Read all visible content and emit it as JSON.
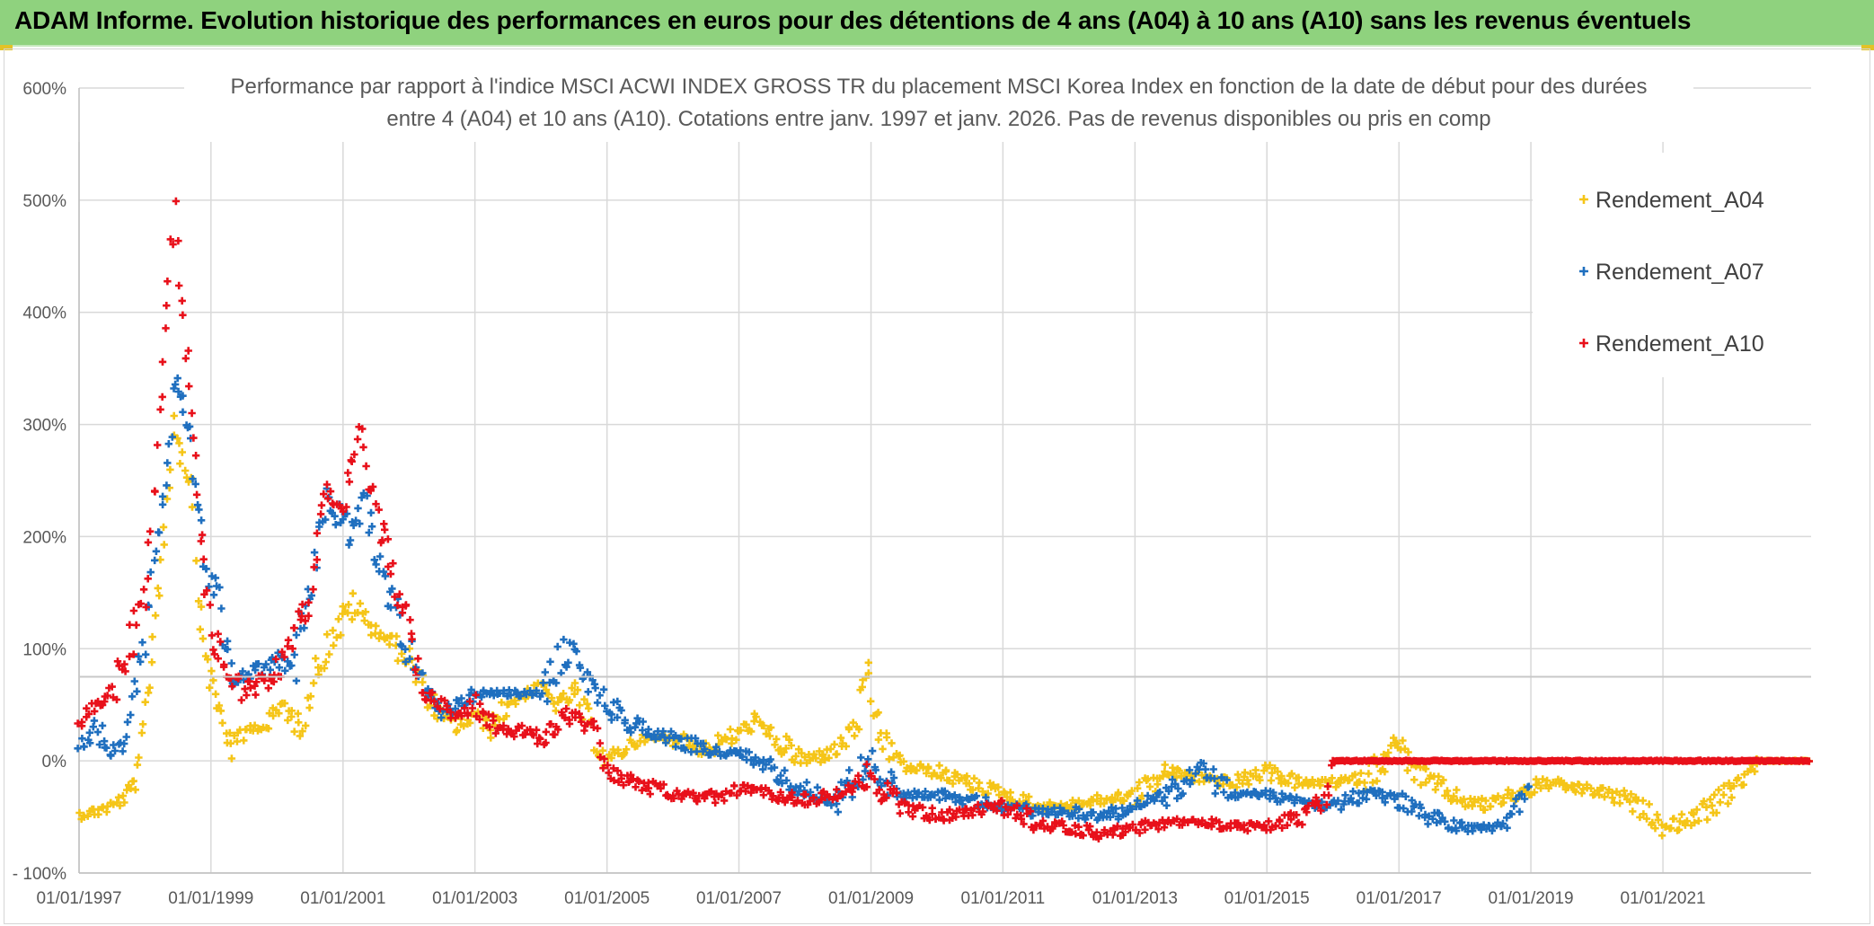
{
  "header": {
    "title": "ADAM Informe. Evolution historique des performances en euros pour des détentions de 4 ans (A04) à 10 ans (A10) sans les revenus éventuels"
  },
  "colors": {
    "banner": "#8fd27e",
    "A04": "#f5c518",
    "A07": "#1f6fbf",
    "A10": "#e8101a",
    "grid": "#d9d9d9",
    "text": "#595959"
  },
  "chart_data": {
    "type": "scatter",
    "title_lines": [
      "Performance  par rapport à l'indice MSCI ACWI INDEX GROSS TR  du placement MSCI Korea Index en fonction de la date de début pour des durées",
      "entre 4 (A04) et 10 ans (A10). Cotations entre janv. 1997 et janv. 2026. Pas de revenus disponibles ou pris en comp"
    ],
    "x_ticks": [
      "01/01/1997",
      "01/01/1999",
      "01/01/2001",
      "01/01/2003",
      "01/01/2005",
      "01/01/2007",
      "01/01/2009",
      "01/01/2011",
      "01/01/2013",
      "01/01/2015",
      "01/01/2017",
      "01/01/2019",
      "01/01/2021"
    ],
    "y_ticks": [
      "600%",
      "500%",
      "400%",
      "300%",
      "200%",
      "100%",
      "0%",
      "- 100%"
    ],
    "xlim": [
      "1997-01-01",
      "2023-04-01"
    ],
    "ylim": [
      -100,
      600
    ],
    "legend_position": "top-right",
    "grid": true,
    "series": [
      {
        "name": "Rendement_A04",
        "points": [
          [
            "1997-01-01",
            -48
          ],
          [
            "1997-04-01",
            -45
          ],
          [
            "1997-07-01",
            -40
          ],
          [
            "1997-10-01",
            -30
          ],
          [
            "1997-12-01",
            -10
          ],
          [
            "1998-01-15",
            60
          ],
          [
            "1998-03-01",
            130
          ],
          [
            "1998-05-01",
            230
          ],
          [
            "1998-06-15",
            310
          ],
          [
            "1998-08-01",
            270
          ],
          [
            "1998-09-15",
            250
          ],
          [
            "1998-11-01",
            130
          ],
          [
            "1999-01-01",
            70
          ],
          [
            "1999-03-01",
            40
          ],
          [
            "1999-05-01",
            10
          ],
          [
            "1999-08-01",
            30
          ],
          [
            "1999-11-01",
            30
          ],
          [
            "2000-02-01",
            50
          ],
          [
            "2000-05-01",
            30
          ],
          [
            "2000-08-01",
            80
          ],
          [
            "2000-11-01",
            110
          ],
          [
            "2001-03-01",
            140
          ],
          [
            "2001-06-01",
            120
          ],
          [
            "2001-09-01",
            110
          ],
          [
            "2002-01-01",
            90
          ],
          [
            "2002-04-01",
            60
          ],
          [
            "2002-07-01",
            40
          ],
          [
            "2002-10-01",
            30
          ],
          [
            "2003-01-01",
            40
          ],
          [
            "2003-04-01",
            30
          ],
          [
            "2003-07-01",
            50
          ],
          [
            "2003-10-01",
            60
          ],
          [
            "2004-01-01",
            65
          ],
          [
            "2004-04-01",
            50
          ],
          [
            "2004-07-01",
            60
          ],
          [
            "2004-10-01",
            30
          ],
          [
            "2005-01-01",
            0
          ],
          [
            "2005-04-01",
            10
          ],
          [
            "2005-07-01",
            20
          ],
          [
            "2006-01-01",
            20
          ],
          [
            "2006-07-01",
            10
          ],
          [
            "2007-01-01",
            25
          ],
          [
            "2007-04-01",
            35
          ],
          [
            "2007-07-01",
            20
          ],
          [
            "2008-01-01",
            0
          ],
          [
            "2008-07-01",
            10
          ],
          [
            "2008-10-01",
            30
          ],
          [
            "2008-12-15",
            70
          ],
          [
            "2009-03-01",
            20
          ],
          [
            "2009-07-01",
            -5
          ],
          [
            "2010-01-01",
            -10
          ],
          [
            "2010-07-01",
            -20
          ],
          [
            "2011-01-01",
            -30
          ],
          [
            "2011-07-01",
            -40
          ],
          [
            "2012-01-01",
            -40
          ],
          [
            "2012-07-01",
            -35
          ],
          [
            "2013-01-01",
            -30
          ],
          [
            "2013-07-01",
            -10
          ],
          [
            "2014-01-01",
            -15
          ],
          [
            "2014-07-01",
            -20
          ],
          [
            "2015-01-01",
            -10
          ],
          [
            "2015-07-01",
            -20
          ],
          [
            "2016-01-01",
            -20
          ],
          [
            "2016-07-01",
            -15
          ],
          [
            "2017-01-01",
            15
          ],
          [
            "2017-04-01",
            -10
          ],
          [
            "2017-10-01",
            -30
          ],
          [
            "2018-04-01",
            -40
          ],
          [
            "2018-10-01",
            -30
          ],
          [
            "2019-04-01",
            -20
          ],
          [
            "2019-10-01",
            -25
          ],
          [
            "2020-04-01",
            -30
          ],
          [
            "2020-10-01",
            -45
          ],
          [
            "2021-01-01",
            -60
          ],
          [
            "2021-07-01",
            -50
          ],
          [
            "2022-01-01",
            -30
          ],
          [
            "2022-04-01",
            -10
          ],
          [
            "2022-07-01",
            0
          ],
          [
            "2023-04-01",
            0
          ]
        ]
      },
      {
        "name": "Rendement_A07",
        "points": [
          [
            "1997-01-01",
            10
          ],
          [
            "1997-04-01",
            30
          ],
          [
            "1997-07-01",
            5
          ],
          [
            "1997-10-01",
            20
          ],
          [
            "1998-01-01",
            110
          ],
          [
            "1998-03-01",
            200
          ],
          [
            "1998-04-15",
            230
          ],
          [
            "1998-06-15",
            340
          ],
          [
            "1998-08-15",
            310
          ],
          [
            "1998-10-15",
            240
          ],
          [
            "1998-12-01",
            170
          ],
          [
            "1999-02-01",
            150
          ],
          [
            "1999-05-01",
            70
          ],
          [
            "1999-09-01",
            80
          ],
          [
            "2000-01-01",
            90
          ],
          [
            "2000-04-01",
            80
          ],
          [
            "2000-07-01",
            150
          ],
          [
            "2000-10-01",
            240
          ],
          [
            "2001-02-01",
            200
          ],
          [
            "2001-05-01",
            230
          ],
          [
            "2001-08-01",
            170
          ],
          [
            "2002-01-01",
            100
          ],
          [
            "2002-04-01",
            60
          ],
          [
            "2002-07-01",
            40
          ],
          [
            "2002-10-01",
            50
          ],
          [
            "2003-01-01",
            60
          ],
          [
            "2003-06-01",
            60
          ],
          [
            "2004-01-01",
            60
          ],
          [
            "2004-06-01",
            100
          ],
          [
            "2004-10-01",
            70
          ],
          [
            "2005-01-01",
            50
          ],
          [
            "2005-07-01",
            30
          ],
          [
            "2006-01-01",
            20
          ],
          [
            "2006-07-01",
            10
          ],
          [
            "2007-01-01",
            5
          ],
          [
            "2007-07-01",
            -5
          ],
          [
            "2008-01-01",
            -25
          ],
          [
            "2008-07-01",
            -35
          ],
          [
            "2008-12-15",
            0
          ],
          [
            "2009-06-01",
            -30
          ],
          [
            "2010-01-01",
            -30
          ],
          [
            "2010-07-01",
            -35
          ],
          [
            "2011-01-01",
            -40
          ],
          [
            "2011-07-01",
            -45
          ],
          [
            "2012-01-01",
            -45
          ],
          [
            "2012-07-01",
            -50
          ],
          [
            "2013-01-01",
            -40
          ],
          [
            "2013-07-01",
            -30
          ],
          [
            "2014-01-01",
            -10
          ],
          [
            "2014-07-01",
            -30
          ],
          [
            "2015-01-01",
            -30
          ],
          [
            "2015-07-01",
            -35
          ],
          [
            "2016-01-01",
            -40
          ],
          [
            "2016-07-01",
            -30
          ],
          [
            "2017-01-01",
            -35
          ],
          [
            "2017-07-01",
            -50
          ],
          [
            "2018-01-01",
            -60
          ],
          [
            "2018-07-01",
            -60
          ],
          [
            "2018-10-01",
            -50
          ],
          [
            "2019-01-01",
            -20
          ]
        ]
      },
      {
        "name": "Rendement_A10",
        "points": [
          [
            "1997-01-01",
            30
          ],
          [
            "1997-04-01",
            50
          ],
          [
            "1997-07-01",
            60
          ],
          [
            "1997-10-01",
            100
          ],
          [
            "1998-01-01",
            150
          ],
          [
            "1998-03-01",
            250
          ],
          [
            "1998-05-01",
            400
          ],
          [
            "1998-06-15",
            500
          ],
          [
            "1998-08-01",
            380
          ],
          [
            "1998-09-15",
            320
          ],
          [
            "1998-11-01",
            200
          ],
          [
            "1999-01-01",
            120
          ],
          [
            "1999-04-01",
            80
          ],
          [
            "1999-07-01",
            60
          ],
          [
            "2000-01-01",
            80
          ],
          [
            "2000-04-01",
            120
          ],
          [
            "2000-07-01",
            140
          ],
          [
            "2000-10-01",
            240
          ],
          [
            "2001-01-01",
            230
          ],
          [
            "2001-04-01",
            290
          ],
          [
            "2001-07-01",
            220
          ],
          [
            "2002-01-01",
            120
          ],
          [
            "2002-04-01",
            60
          ],
          [
            "2002-07-01",
            50
          ],
          [
            "2002-10-01",
            40
          ],
          [
            "2003-01-01",
            50
          ],
          [
            "2003-06-01",
            30
          ],
          [
            "2004-01-01",
            20
          ],
          [
            "2004-06-01",
            40
          ],
          [
            "2004-10-01",
            30
          ],
          [
            "2005-01-01",
            -10
          ],
          [
            "2005-07-01",
            -20
          ],
          [
            "2006-01-01",
            -30
          ],
          [
            "2006-07-01",
            -35
          ],
          [
            "2007-01-01",
            -25
          ],
          [
            "2007-07-01",
            -30
          ],
          [
            "2008-01-01",
            -35
          ],
          [
            "2008-07-01",
            -30
          ],
          [
            "2008-12-15",
            -15
          ],
          [
            "2009-06-01",
            -40
          ],
          [
            "2010-01-01",
            -50
          ],
          [
            "2010-07-01",
            -45
          ],
          [
            "2011-01-01",
            -40
          ],
          [
            "2011-07-01",
            -55
          ],
          [
            "2012-01-01",
            -60
          ],
          [
            "2012-07-01",
            -65
          ],
          [
            "2013-01-01",
            -60
          ],
          [
            "2013-07-01",
            -55
          ],
          [
            "2014-01-01",
            -55
          ],
          [
            "2014-07-01",
            -58
          ],
          [
            "2015-01-01",
            -60
          ],
          [
            "2015-07-01",
            -50
          ],
          [
            "2015-12-15",
            -30
          ],
          [
            "2016-01-01",
            0
          ],
          [
            "2023-04-01",
            0
          ]
        ]
      }
    ]
  }
}
